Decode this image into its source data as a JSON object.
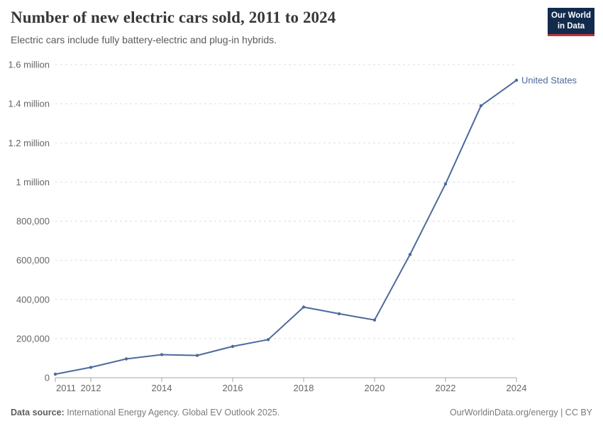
{
  "header": {
    "title": "Number of new electric cars sold, 2011 to 2024",
    "subtitle": "Electric cars include fully battery-electric and plug-in hybrids.",
    "logo": {
      "line1": "Our World",
      "line2": "in Data"
    }
  },
  "chart_data": {
    "type": "line",
    "title": "Number of new electric cars sold, 2011 to 2024",
    "x": [
      2011,
      2012,
      2013,
      2014,
      2015,
      2016,
      2017,
      2018,
      2019,
      2020,
      2021,
      2022,
      2023,
      2024
    ],
    "series": [
      {
        "name": "United States",
        "color": "#4c6a9c",
        "values": [
          18000,
          53000,
          96000,
          118000,
          114000,
          160000,
          195000,
          361000,
          327000,
          295000,
          630000,
          990000,
          1390000,
          1520000
        ]
      }
    ],
    "xlim": [
      2011,
      2024
    ],
    "ylim": [
      0,
      1600000
    ],
    "x_ticks": [
      2011,
      2012,
      2014,
      2016,
      2018,
      2020,
      2022,
      2024
    ],
    "y_ticks": [
      {
        "value": 0,
        "label": "0"
      },
      {
        "value": 200000,
        "label": "200,000"
      },
      {
        "value": 400000,
        "label": "400,000"
      },
      {
        "value": 600000,
        "label": "600,000"
      },
      {
        "value": 800000,
        "label": "800,000"
      },
      {
        "value": 1000000,
        "label": "1 million"
      },
      {
        "value": 1200000,
        "label": "1.2 million"
      },
      {
        "value": 1400000,
        "label": "1.4 million"
      },
      {
        "value": 1600000,
        "label": "1.6 million"
      }
    ],
    "grid": "horizontal-dashed",
    "legend_position": "end-of-line"
  },
  "colors": {
    "line": "#4c6a9c",
    "grid": "#dddddd",
    "axis": "#a5a5a5",
    "tick_label": "#666666",
    "series_label": "#4c6a9c",
    "title": "#383838",
    "subtitle": "#5a5a5a",
    "footer": "#7a7a7a",
    "logo_bg": "#122b4d",
    "logo_accent": "#c0333e"
  },
  "footer": {
    "source_label": "Data source:",
    "source_text": "International Energy Agency. Global EV Outlook 2025.",
    "credit": "OurWorldinData.org/energy | CC BY"
  }
}
